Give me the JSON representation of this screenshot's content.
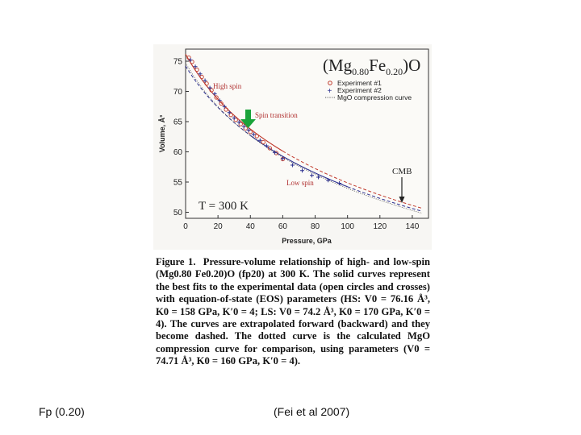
{
  "chart_data": {
    "type": "scatter",
    "title_main": "(Mg",
    "title_mg_sub": "0.80",
    "title_fe": "Fe",
    "title_fe_sub": "0.20",
    "title_tail": ")O",
    "xlabel": "Pressure, GPa",
    "ylabel": "Volume, Å³",
    "xlim": [
      0,
      150
    ],
    "ylim": [
      49,
      77
    ],
    "x_ticks": [
      "0",
      "20",
      "40",
      "60",
      "80",
      "100",
      "120",
      "140"
    ],
    "y_ticks": [
      "50",
      "55",
      "60",
      "65",
      "70",
      "75"
    ],
    "x_tick_values": [
      0,
      20,
      40,
      60,
      80,
      100,
      120,
      140
    ],
    "y_tick_values": [
      50,
      55,
      60,
      65,
      70,
      75
    ],
    "legend": [
      "Experiment #1",
      "Experiment #2",
      "MgO compression curve"
    ],
    "annotations": {
      "high_spin": "High spin",
      "spin_transition": "Spin transition",
      "low_spin": "Low spin",
      "cmb": "CMB",
      "temperature": "T = 300 K"
    },
    "colors": {
      "high_spin_curve": "#c0392b",
      "low_spin_curve": "#2b2f8f",
      "mgo_curve": "#555555",
      "experiment1": "#c0392b",
      "experiment2": "#2b2f8f",
      "arrow_green": "#1aa33a"
    },
    "cmb_pressure": 136,
    "series": [
      {
        "name": "Experiment #1",
        "marker": "open-circle",
        "points": [
          [
            2,
            75.6
          ],
          [
            4,
            74.9
          ],
          [
            7,
            73.6
          ],
          [
            10,
            72.4
          ],
          [
            13,
            71.3
          ],
          [
            16,
            70.2
          ],
          [
            19,
            69.0
          ],
          [
            22,
            68.0
          ],
          [
            25,
            67.0
          ],
          [
            28,
            66.1
          ],
          [
            31,
            65.3
          ],
          [
            34,
            64.6
          ],
          [
            37,
            63.9
          ],
          [
            40,
            63.3
          ],
          [
            44,
            62.6
          ],
          [
            48,
            61.6
          ],
          [
            52,
            60.6
          ],
          [
            56,
            59.8
          ],
          [
            60,
            58.8
          ]
        ]
      },
      {
        "name": "Experiment #2",
        "marker": "cross",
        "points": [
          [
            3,
            75.2
          ],
          [
            6,
            74.1
          ],
          [
            9,
            72.9
          ],
          [
            12,
            71.8
          ],
          [
            15,
            70.6
          ],
          [
            18,
            69.6
          ],
          [
            21,
            68.5
          ],
          [
            24,
            67.5
          ],
          [
            27,
            66.5
          ],
          [
            30,
            65.6
          ],
          [
            33,
            64.9
          ],
          [
            36,
            64.2
          ],
          [
            39,
            63.6
          ],
          [
            42,
            62.9
          ],
          [
            46,
            61.9
          ],
          [
            50,
            61.0
          ],
          [
            55,
            59.9
          ],
          [
            60,
            58.9
          ],
          [
            66,
            57.8
          ],
          [
            72,
            56.9
          ],
          [
            78,
            56.1
          ],
          [
            82,
            55.8
          ],
          [
            88,
            55.3
          ],
          [
            95,
            54.8
          ]
        ]
      }
    ],
    "curves": [
      {
        "name": "High spin EOS",
        "V0": 76.16,
        "K0": 158,
        "K0p": 4,
        "style": "solid-then-dashed",
        "solid_range": [
          0,
          60
        ]
      },
      {
        "name": "Low spin EOS",
        "V0": 74.2,
        "K0": 170,
        "K0p": 4,
        "style": "solid-then-dashed",
        "solid_range": [
          40,
          100
        ]
      },
      {
        "name": "MgO compression curve",
        "V0": 74.71,
        "K0": 160,
        "K0p": 4,
        "style": "dotted"
      }
    ]
  },
  "caption": {
    "label": "Figure 1.",
    "text": "Pressure-volume relationship of high- and low-spin (Mg0.80 Fe0.20)O (fp20) at 300 K. The solid curves represent the best fits to the experimental data (open circles and crosses) with equation-of-state (EOS) parameters (HS: V0 = 76.16 Å³, K0 = 158 GPa, K′0 = 4; LS: V0 = 74.2 Å³, K0 = 170 GPa, K′0 = 4). The curves are extrapolated forward (backward) and they become dashed. The dotted curve is the calculated MgO compression curve for comparison, using parameters (V0 = 74.71 Å³, K0 = 160 GPa, K′0 = 4)."
  },
  "footer": {
    "left": "Fp (0.20)",
    "right": "(Fei et al 2007)"
  }
}
